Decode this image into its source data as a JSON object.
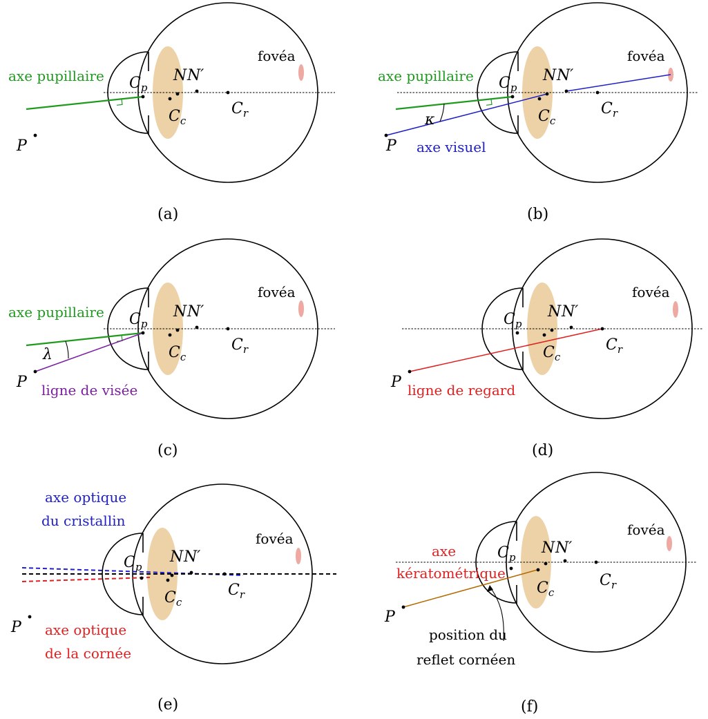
{
  "colors": {
    "pupil_axis": "#1f9a1f",
    "visual_axis": "#1f1fc8",
    "line_of_sight": "#7a1fa0",
    "gaze_line": "#e02020",
    "keratometric_axis": "#b36b00",
    "lens_fill": "#ecd2a6",
    "fovea_fill": "#eda9a2",
    "lens_axis": "#1f1fc8",
    "cornea_axis": "#e02020"
  },
  "symbols": {
    "P": "P",
    "N": "N",
    "N_prime": "N′",
    "C": "C",
    "p": "p",
    "c": "c",
    "r": "r",
    "kappa": "κ",
    "lambda": "λ"
  },
  "labels": {
    "fovea": "fovéa",
    "pupil_axis": "axe pupillaire",
    "visual_axis": "axe visuel",
    "line_of_sight": "ligne de visée",
    "gaze_line": "ligne de regard",
    "lens_axis_1": "axe optique",
    "lens_axis_2": "du cristallin",
    "cornea_axis_1": "axe optique",
    "cornea_axis_2": "de la cornée",
    "kerato_1": "axe",
    "kerato_2": "kératométrique",
    "reflet_1": "position du",
    "reflet_2": "reflet cornéen"
  },
  "captions": {
    "a": "(a)",
    "b": "(b)",
    "c": "(c)",
    "d": "(d)",
    "e": "(e)",
    "f": "(f)"
  }
}
